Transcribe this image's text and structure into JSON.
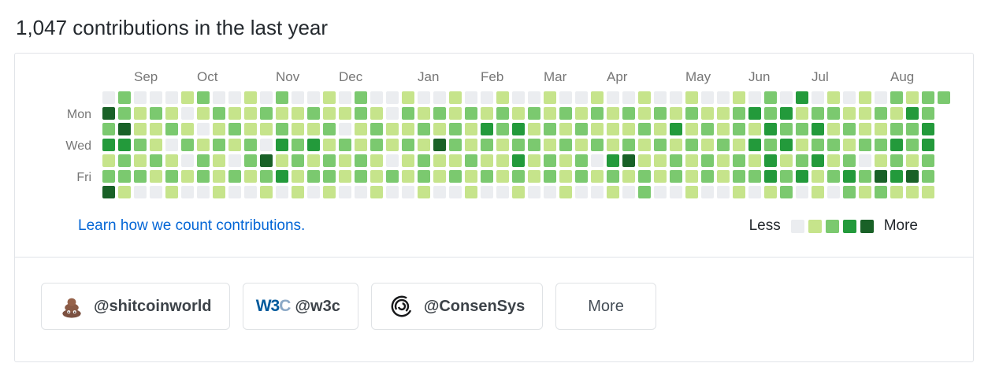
{
  "header": {
    "title": "1,047 contributions in the last year"
  },
  "calendar": {
    "months": [
      {
        "label": "Sep",
        "week": 2
      },
      {
        "label": "Oct",
        "week": 6
      },
      {
        "label": "Nov",
        "week": 11
      },
      {
        "label": "Dec",
        "week": 15
      },
      {
        "label": "Jan",
        "week": 20
      },
      {
        "label": "Feb",
        "week": 24
      },
      {
        "label": "Mar",
        "week": 28
      },
      {
        "label": "Apr",
        "week": 32
      },
      {
        "label": "May",
        "week": 37
      },
      {
        "label": "Jun",
        "week": 41
      },
      {
        "label": "Jul",
        "week": 45
      },
      {
        "label": "Aug",
        "week": 50
      }
    ],
    "days": [
      {
        "label": "Mon",
        "row": 1
      },
      {
        "label": "Wed",
        "row": 3
      },
      {
        "label": "Fri",
        "row": 5
      }
    ],
    "palette": [
      "#ebedf0",
      "#c6e48b",
      "#7bc96f",
      "#239a3b",
      "#196127"
    ],
    "weeks": [
      "0423124",
      "2243221",
      "0112120",
      "0211210",
      "0120121",
      "1012010",
      "2101220",
      "0212111",
      "0121020",
      "1112210",
      "0210421",
      "2123130",
      "0112211",
      "0213120",
      "1121221",
      "0102110",
      "2211220",
      "0122111",
      "0011020",
      "1212110",
      "0121221",
      "0214110",
      "1122120",
      "0211211",
      "0132120",
      "1221110",
      "0132321",
      "0212110",
      "1121220",
      "0212111",
      "0121220",
      "1212010",
      "0111321",
      "0212410",
      "1121122",
      "0212110",
      "0131220",
      "1212111",
      "0121220",
      "0112110",
      "1221221",
      "0313120",
      "2232331",
      "0323122",
      "3121230",
      "0232311",
      "1212120",
      "0121232",
      "1112021",
      "0212142",
      "2123231",
      "1322141",
      "2233221",
      "2xxxxxx"
    ],
    "link": "Learn how we count contributions.",
    "legend": {
      "less": "Less",
      "more": "More"
    }
  },
  "orgs": [
    {
      "name": "@shitcoinworld",
      "icon": "poop-emoji"
    },
    {
      "name": "@w3c",
      "icon": "w3c-logo",
      "logo_w3": "W3",
      "logo_c": "C"
    },
    {
      "name": "@ConsenSys",
      "icon": "consensys-spiral-logo"
    }
  ],
  "more_button": {
    "label": "More"
  }
}
